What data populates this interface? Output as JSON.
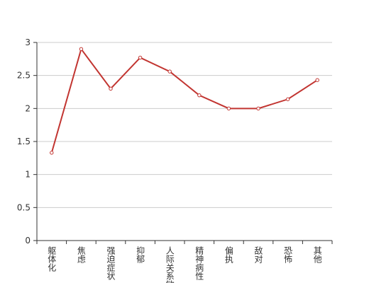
{
  "chart_data": {
    "type": "line",
    "categories": [
      "躯体化",
      "焦虑",
      "强迫症状",
      "抑郁",
      "人际关系敏感",
      "精神病性",
      "偏执",
      "敌对",
      "恐怖",
      "其他"
    ],
    "values": [
      1.33,
      2.9,
      2.3,
      2.77,
      2.56,
      2.2,
      2.0,
      2.0,
      2.14,
      2.43
    ],
    "color": "#c23531",
    "ylim": [
      0,
      3
    ],
    "yticks": [
      0,
      0.5,
      1,
      1.5,
      2,
      2.5,
      3
    ],
    "grid": true
  }
}
